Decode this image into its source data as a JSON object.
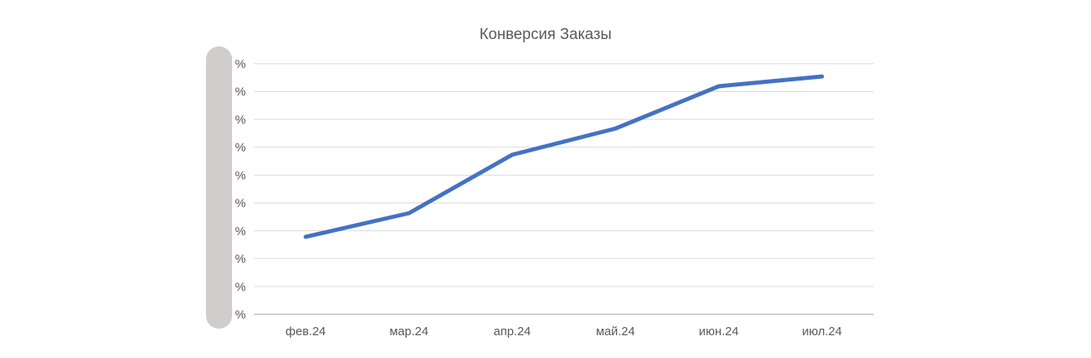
{
  "chart_data": {
    "type": "line",
    "title": "Конверсия Заказы",
    "categories": [
      "фев.24",
      "мар.24",
      "апр.24",
      "май.24",
      "июн.24",
      "июл.24"
    ],
    "series": [
      {
        "name": "Конверсия Заказы",
        "values": [
          2.78,
          3.63,
          5.73,
          6.67,
          8.19,
          8.54
        ],
        "color": "#4472C4"
      }
    ],
    "xlabel": "",
    "ylabel": "",
    "x_tick_labels": [
      "фев.24",
      "мар.24",
      "апр.24",
      "май.24",
      "июн.24",
      "июл.24"
    ],
    "y_ticks": {
      "values": [
        0,
        1,
        2,
        3,
        4,
        5,
        6,
        7,
        8,
        9
      ],
      "labels": [
        "%",
        "%",
        "%",
        "%",
        "%",
        "%",
        "%",
        "%",
        "%",
        "%"
      ]
    },
    "ylim": [
      0,
      9.6
    ],
    "grid": true,
    "legend": "none",
    "note": "Numeric portion of y-axis percent labels is covered by a gray rounded redaction bar; values expressed in gridline units above the x-axis."
  },
  "colors": {
    "background": "#FFFFFF",
    "line": "#4472C4",
    "gridline": "#D9D9D9",
    "axis_line": "#BFBFBF",
    "text": "#595959",
    "redaction_bar": "#D1CDCD"
  }
}
